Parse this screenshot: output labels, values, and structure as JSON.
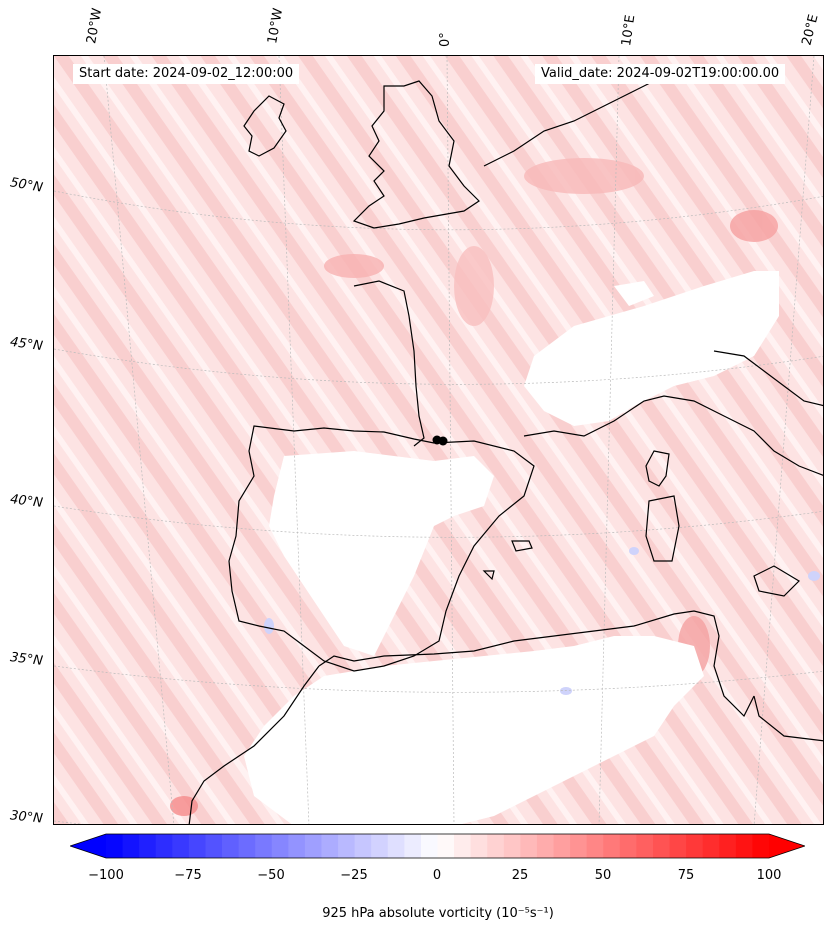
{
  "map": {
    "start_date": "Start date: 2024-09-02_12:00:00",
    "valid_date": "Valid_date: 2024-09-02T19:00:00.00",
    "lon_labels": [
      "20°W",
      "10°W",
      "0°",
      "10°E",
      "20°E"
    ],
    "lat_labels": [
      "50°N",
      "45°N",
      "40°N",
      "35°N",
      "30°N"
    ],
    "field": "925 hPa absolute vorticity",
    "colors": {
      "positive_strong": "#ff0000",
      "positive_light": "#fdeaea",
      "zero": "#ffffff",
      "negative_strong": "#0000ff",
      "coastline": "#000000",
      "grid": "#bbbbbb"
    }
  },
  "colorbar": {
    "label": "925 hPa absolute vorticity (10⁻⁵s⁻¹)",
    "ticks": [
      "−100",
      "−75",
      "−50",
      "−25",
      "0",
      "25",
      "50",
      "75",
      "100"
    ],
    "min": -100,
    "max": 100,
    "levels": 41
  }
}
